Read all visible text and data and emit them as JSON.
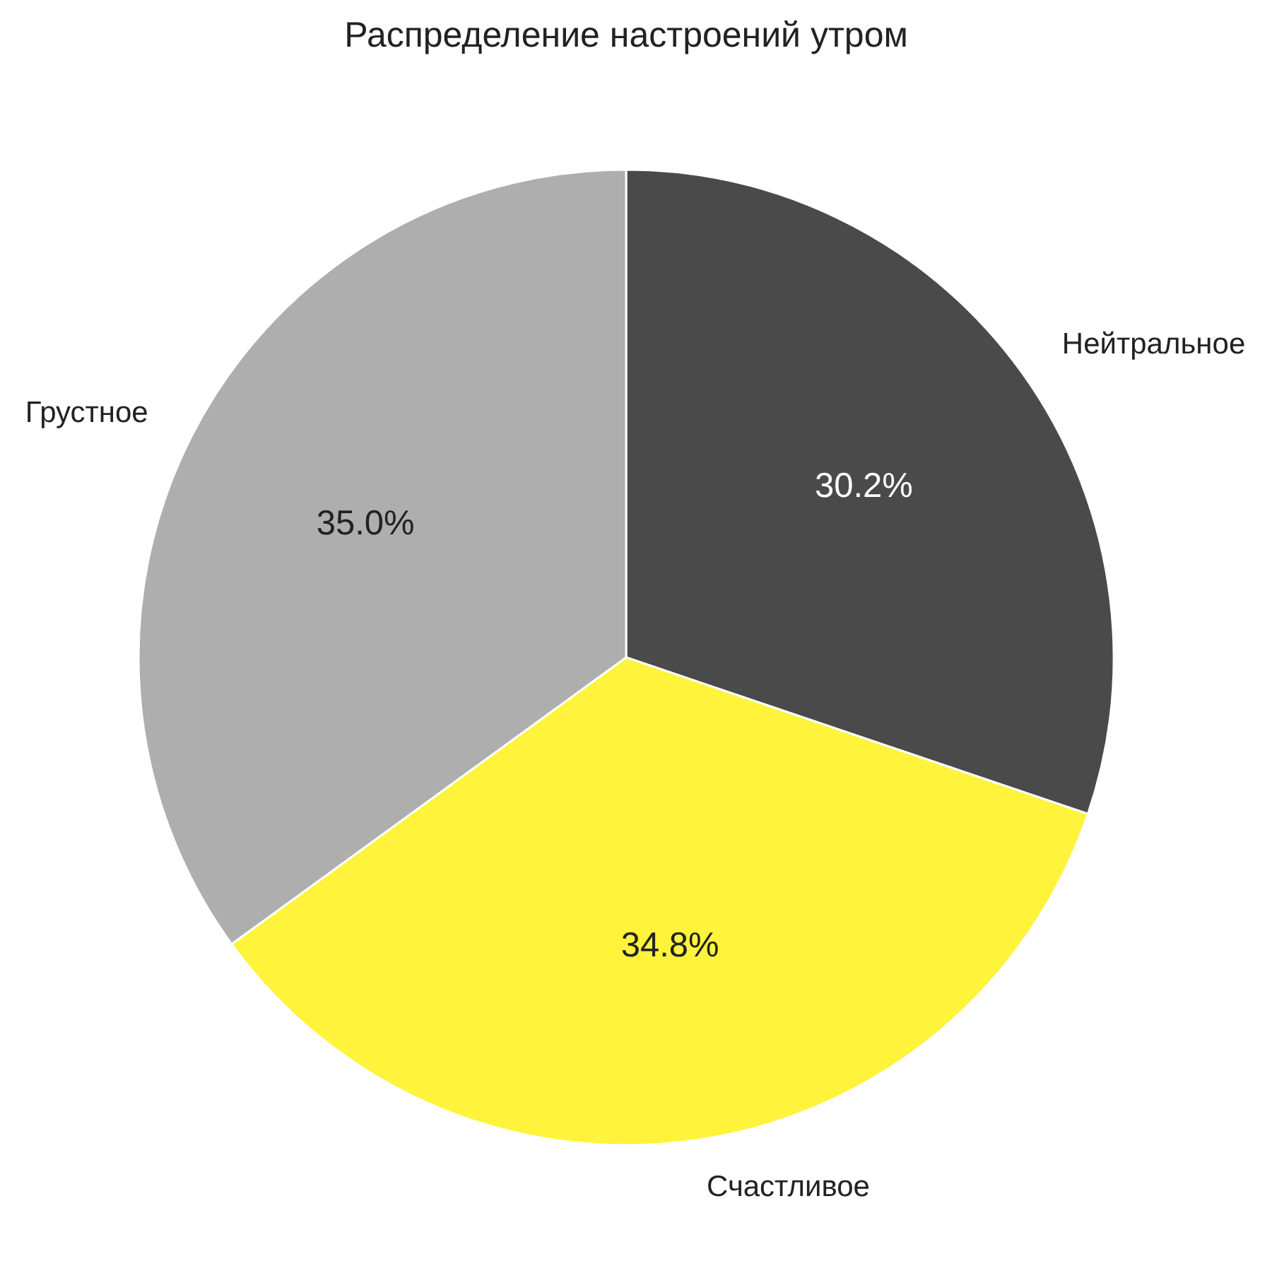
{
  "chart_data": {
    "type": "pie",
    "title": "Распределение настроений утром",
    "categories": [
      "Нейтральное",
      "Счастливое",
      "Грустное"
    ],
    "values": [
      30.2,
      34.8,
      35.0
    ],
    "colors": [
      "#4a4a4a",
      "#fff33b",
      "#aeaeae"
    ],
    "value_labels": [
      "30.2%",
      "34.8%",
      "35.0%"
    ]
  }
}
